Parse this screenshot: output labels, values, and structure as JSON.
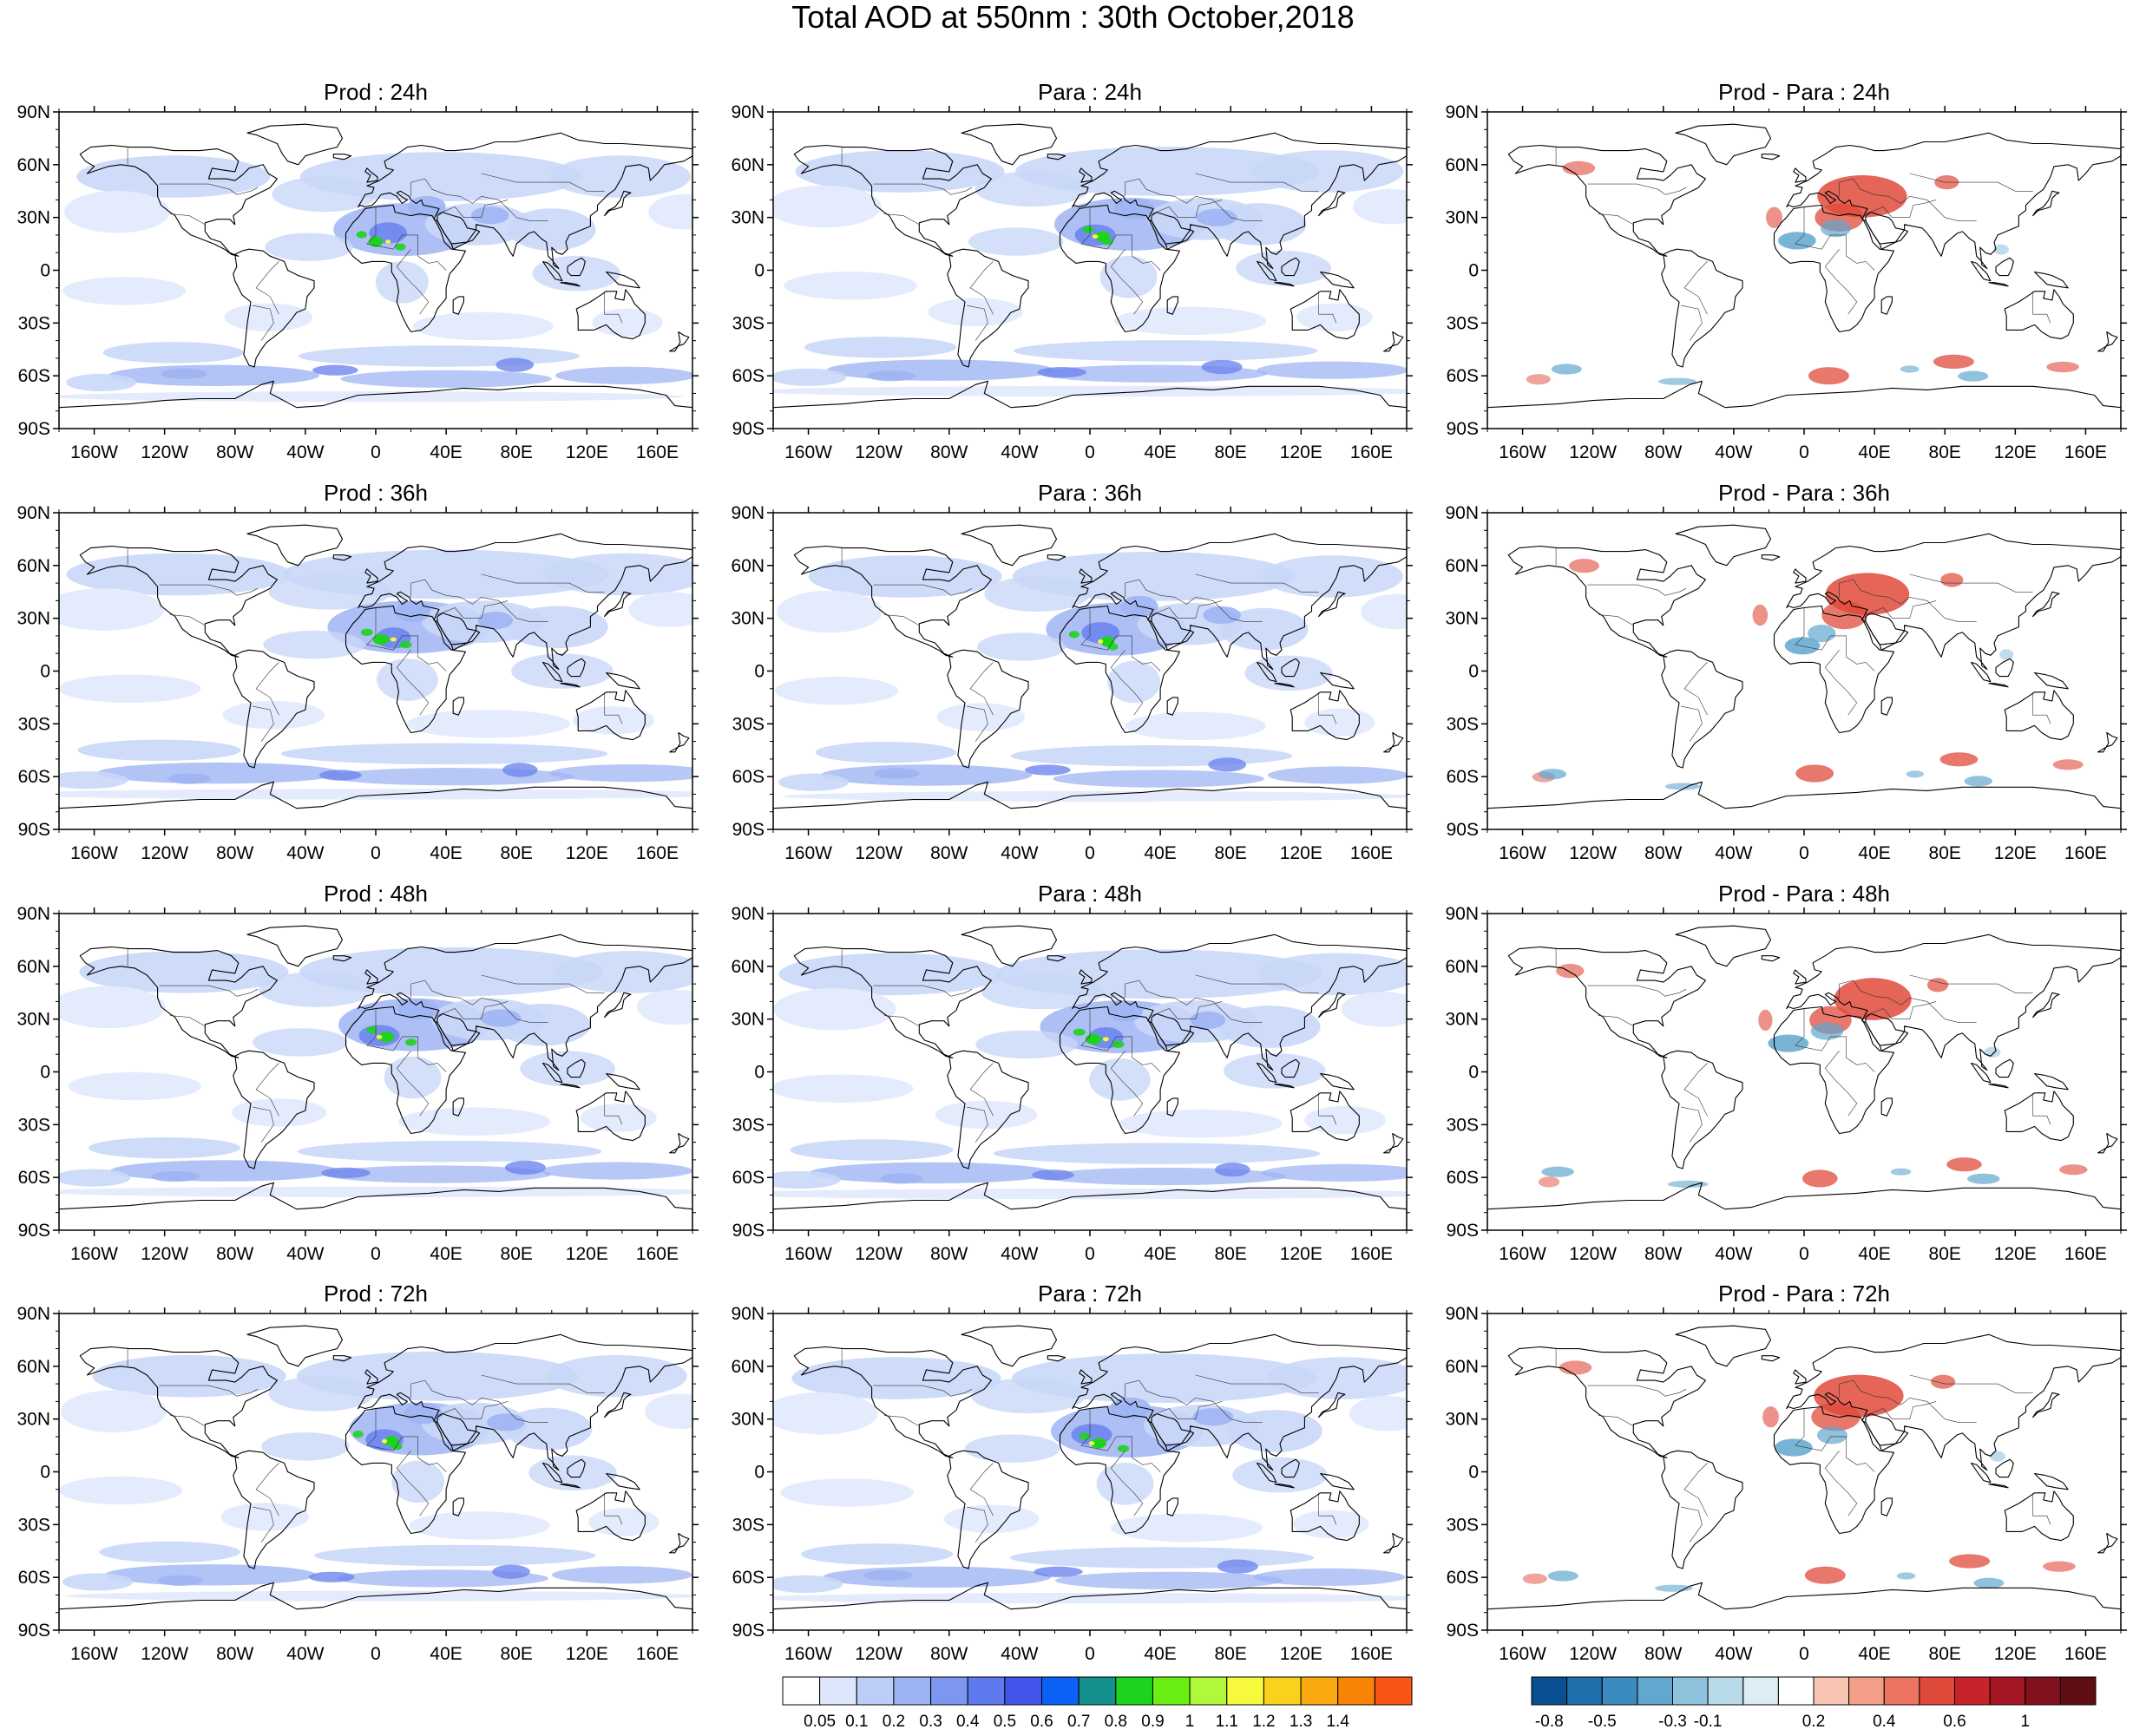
{
  "title": "Total AOD at 550nm : 30th October,2018",
  "axes": {
    "lat_labels": [
      "90N",
      "60N",
      "30N",
      "0",
      "30S",
      "60S",
      "90S"
    ],
    "lon_labels": [
      "160W",
      "120W",
      "80W",
      "40W",
      "0",
      "40E",
      "80E",
      "120E",
      "160E"
    ]
  },
  "panels": [
    {
      "title": "Prod : 24h",
      "type": "aod",
      "lead": "24h"
    },
    {
      "title": "Para : 24h",
      "type": "aod",
      "lead": "24h"
    },
    {
      "title": "Prod - Para : 24h",
      "type": "diff",
      "lead": "24h"
    },
    {
      "title": "Prod : 36h",
      "type": "aod",
      "lead": "36h"
    },
    {
      "title": "Para : 36h",
      "type": "aod",
      "lead": "36h"
    },
    {
      "title": "Prod - Para : 36h",
      "type": "diff",
      "lead": "36h"
    },
    {
      "title": "Prod : 48h",
      "type": "aod",
      "lead": "48h"
    },
    {
      "title": "Para : 48h",
      "type": "aod",
      "lead": "48h"
    },
    {
      "title": "Prod - Para : 48h",
      "type": "diff",
      "lead": "48h"
    },
    {
      "title": "Prod : 72h",
      "type": "aod",
      "lead": "72h"
    },
    {
      "title": "Para : 72h",
      "type": "aod",
      "lead": "72h"
    },
    {
      "title": "Prod - Para : 72h",
      "type": "diff",
      "lead": "72h"
    }
  ],
  "colorbars": {
    "aod": {
      "labels": [
        "0.05",
        "0.1",
        "0.2",
        "0.3",
        "0.4",
        "0.5",
        "0.6",
        "0.7",
        "0.8",
        "0.9",
        "1",
        "1.1",
        "1.2",
        "1.3",
        "1.4"
      ],
      "colors": [
        "#ffffff",
        "#dde6fb",
        "#bccdf7",
        "#9cb3f4",
        "#7d97f1",
        "#5f79ee",
        "#4356ec",
        "#0a62f6",
        "#14918f",
        "#1ed31e",
        "#6bef13",
        "#b0f83a",
        "#f7fa3c",
        "#fbd21b",
        "#fba90f",
        "#f98305",
        "#fa5514"
      ]
    },
    "diff": {
      "labels": [
        "-0.8",
        "-0.5",
        "-0.3",
        "-0.1",
        "0.2",
        "0.4",
        "0.6",
        "1"
      ],
      "label_slots": [
        0.5,
        2,
        4,
        5,
        8,
        10,
        12,
        14
      ],
      "colors": [
        "#0a4f8f",
        "#1f6fab",
        "#3c8bc0",
        "#61a7cf",
        "#8fc3dd",
        "#b7dbe9",
        "#dcedf4",
        "#ffffff",
        "#f9c5b3",
        "#f4a088",
        "#ec7460",
        "#e04a3b",
        "#c6232b",
        "#a51624",
        "#82101d",
        "#5f0c13"
      ]
    }
  },
  "colors": {
    "ocean_haze": "#e3ebfc",
    "aod_light": "#c9d7f8",
    "aod_mid": "#9fb4f3",
    "aod_high": "#6e86ee",
    "dust_core": "#1ed31e",
    "dust_peak": "#f7fa3c",
    "diff_pos": "#e04a3b",
    "diff_neg": "#61a7cf",
    "coast": "#000000"
  }
}
